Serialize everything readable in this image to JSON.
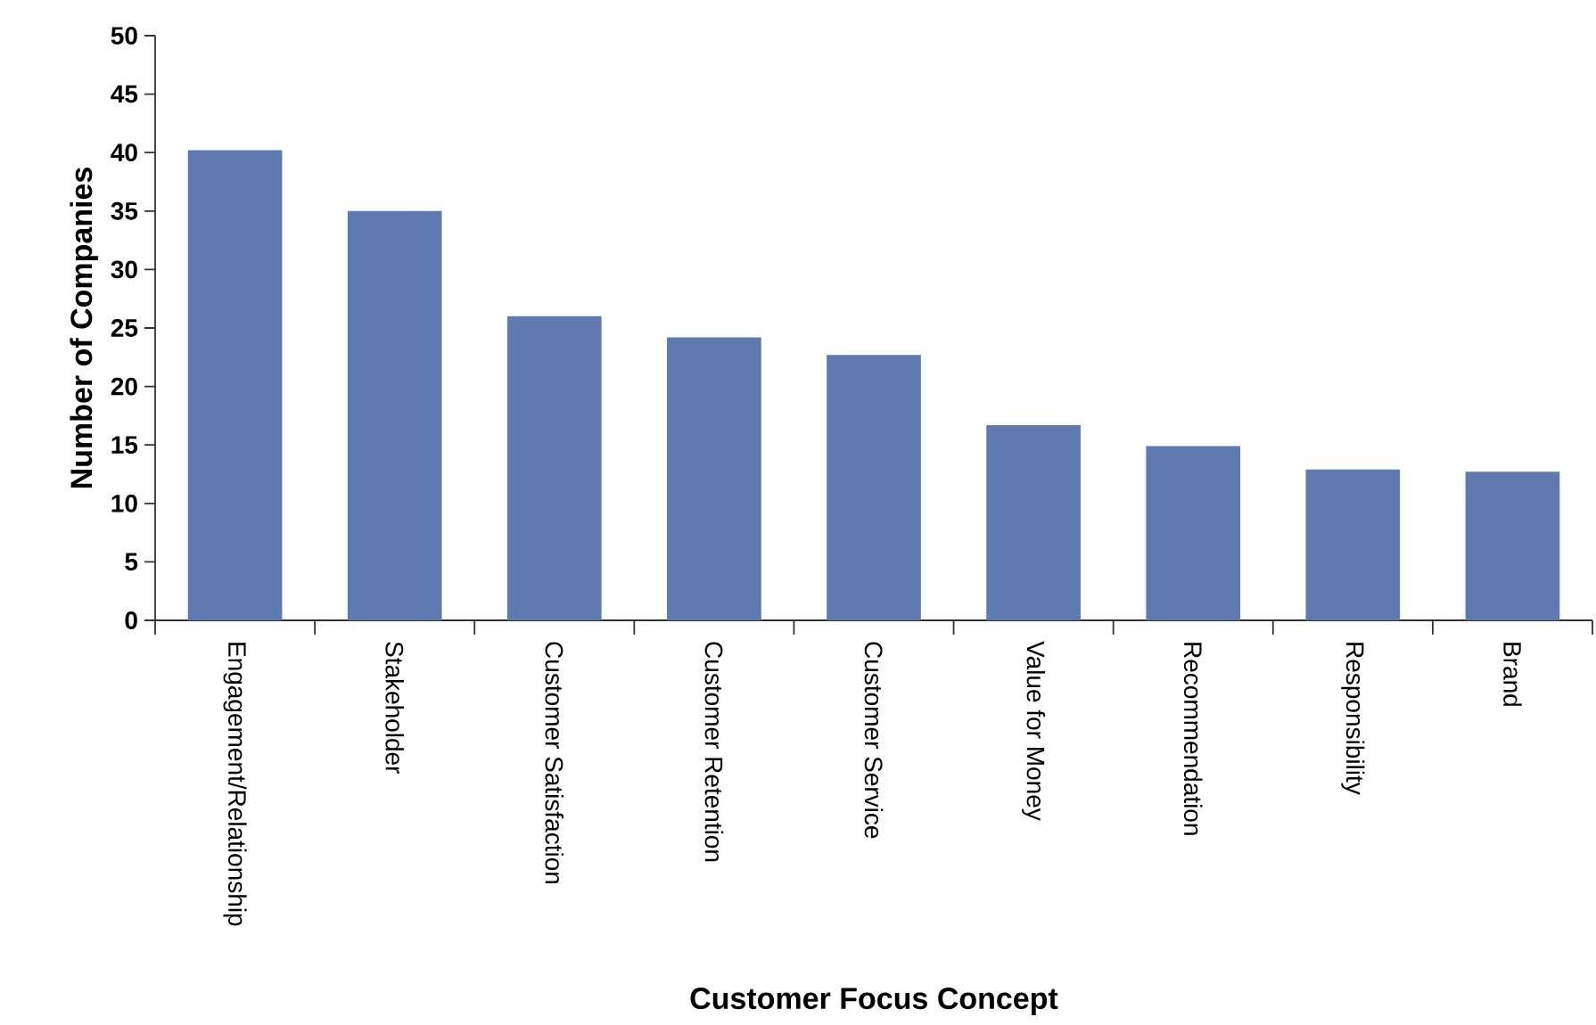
{
  "chart_data": {
    "type": "bar",
    "xlabel": "Customer Focus Concept",
    "ylabel": "Number of Companies",
    "categories": [
      "Engagement/Relationship",
      "Stakeholder",
      "Customer Satisfaction",
      "Customer Retention",
      "Customer Service",
      "Value for Money",
      "Recommendation",
      "Responsibility",
      "Brand"
    ],
    "values": [
      40.2,
      35,
      26,
      24.2,
      22.7,
      16.7,
      14.9,
      12.9,
      12.7
    ],
    "color": "#5f7ab0",
    "ylim": [
      0,
      50
    ],
    "yticks": [
      0,
      5,
      10,
      15,
      20,
      25,
      30,
      35,
      40,
      45,
      50
    ]
  }
}
